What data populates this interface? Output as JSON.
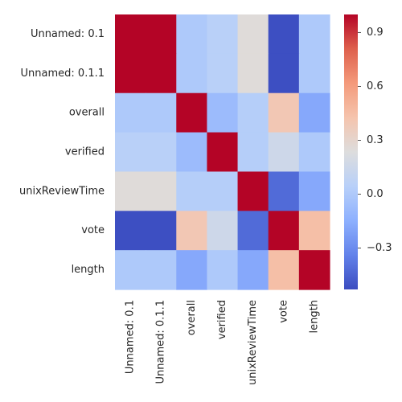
{
  "chart_data": {
    "type": "heatmap",
    "title": "",
    "xlabel": "",
    "ylabel": "",
    "row_labels": [
      "Unnamed: 0.1",
      "Unnamed: 0.1.1",
      "overall",
      "verified",
      "unixReviewTime",
      "vote",
      "length"
    ],
    "col_labels": [
      "Unnamed: 0.1",
      "Unnamed: 0.1.1",
      "overall",
      "verified",
      "unixReviewTime",
      "vote",
      "length"
    ],
    "matrix": [
      [
        1.0,
        1.0,
        0.0,
        0.05,
        0.25,
        -0.52,
        0.0
      ],
      [
        1.0,
        1.0,
        0.0,
        0.05,
        0.25,
        -0.52,
        0.0
      ],
      [
        0.0,
        0.0,
        1.0,
        -0.08,
        0.03,
        0.4,
        -0.18
      ],
      [
        0.05,
        0.05,
        -0.08,
        1.0,
        0.03,
        0.15,
        0.0
      ],
      [
        0.25,
        0.25,
        0.03,
        0.03,
        1.0,
        -0.42,
        -0.18
      ],
      [
        -0.52,
        -0.52,
        0.4,
        0.15,
        -0.42,
        1.0,
        0.45
      ],
      [
        0.0,
        0.0,
        -0.18,
        0.0,
        -0.18,
        0.45,
        1.0
      ]
    ],
    "vmin": -0.53,
    "vmax": 1.0,
    "colormap": "coolwarm",
    "colorbar_ticks": [
      "−0.3",
      "0.0",
      "0.3",
      "0.6",
      "0.9"
    ],
    "colorbar_tick_values": [
      -0.3,
      0.0,
      0.3,
      0.6,
      0.9
    ],
    "colors": {
      "low": "#3b4cc0",
      "mid": "#dddddd",
      "high": "#b40426",
      "text": "#262626"
    }
  }
}
